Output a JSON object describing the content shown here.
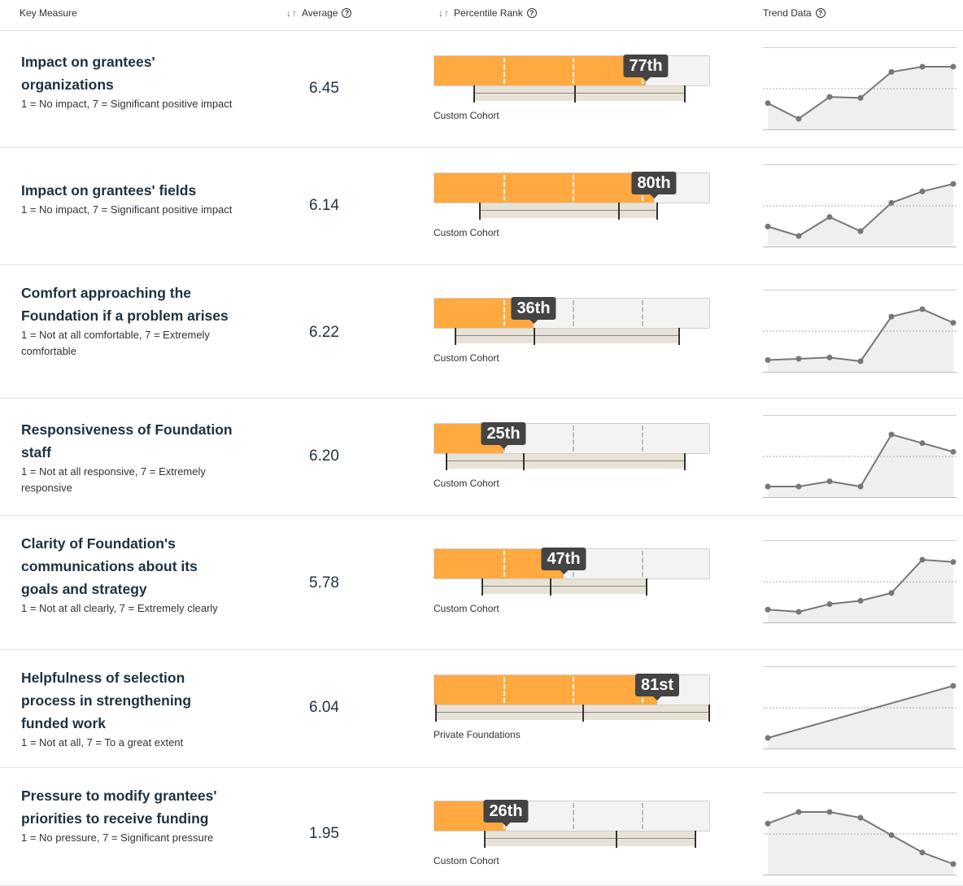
{
  "header": {
    "key_measure": "Key Measure",
    "sort_arrows": "↓↑",
    "average": "Average",
    "percentile_rank": "Percentile Rank",
    "trend_data": "Trend Data",
    "help_icon": "?"
  },
  "colors": {
    "accent": "#ffa940",
    "badge": "#444444",
    "cohort_band": "#e8e2d6",
    "trend_line": "#777777"
  },
  "rows": [
    {
      "title": "Impact on grantees' organizations",
      "subtitle": "1 = No impact, 7 = Significant positive impact",
      "average": "6.45",
      "percentile": 77,
      "rank_label": "77th",
      "cohort_label": "Custom Cohort",
      "cohort_range": [
        0.14,
        0.91
      ],
      "cohort_median": 0.51,
      "trend": [
        6.1,
        5.95,
        6.16,
        6.15,
        6.4,
        6.45,
        6.45
      ]
    },
    {
      "title": "Impact on grantees' fields",
      "subtitle": "1 = No impact, 7 = Significant positive impact",
      "average": "6.14",
      "percentile": 80,
      "rank_label": "80th",
      "cohort_label": "Custom Cohort",
      "cohort_range": [
        0.16,
        0.81
      ],
      "cohort_median": 0.67,
      "trend": [
        5.55,
        5.45,
        5.65,
        5.5,
        5.8,
        5.92,
        6.0
      ]
    },
    {
      "title": "Comfort approaching the Foundation if a problem arises",
      "subtitle": "1 = Not at all comfortable, 7 = Extremely comfortable",
      "average": "6.22",
      "percentile": 36,
      "rank_label": "36th",
      "cohort_label": "Custom Cohort",
      "cohort_range": [
        0.07,
        0.89
      ],
      "cohort_median": 0.36,
      "trend": [
        5.75,
        5.76,
        5.77,
        5.74,
        6.1,
        6.16,
        6.05
      ]
    },
    {
      "title": "Responsiveness of Foundation staff",
      "subtitle": "1 = Not at all responsive, 7 = Extremely responsive",
      "average": "6.20",
      "percentile": 25,
      "rank_label": "25th",
      "cohort_label": "Custom Cohort",
      "cohort_range": [
        0.04,
        0.91
      ],
      "cohort_median": 0.32,
      "trend": [
        5.9,
        5.9,
        5.93,
        5.9,
        6.2,
        6.15,
        6.1
      ]
    },
    {
      "title": "Clarity of Foundation's communications about its goals and strategy",
      "subtitle": "1 = Not at all clearly, 7 = Extremely clearly",
      "average": "5.78",
      "percentile": 47,
      "rank_label": "47th",
      "cohort_label": "Custom Cohort",
      "cohort_range": [
        0.17,
        0.77
      ],
      "cohort_median": 0.42,
      "trend": [
        5.5,
        5.48,
        5.55,
        5.58,
        5.65,
        5.95,
        5.93
      ]
    },
    {
      "title": "Helpfulness of selection process in strengthening funded work",
      "subtitle": "1 = Not at all, 7 = To a great extent",
      "average": "6.04",
      "percentile": 81,
      "rank_label": "81st",
      "cohort_label": "Private Foundations",
      "cohort_range": [
        0.0,
        1.0
      ],
      "cohort_median": 0.54,
      "trend": [
        6.0,
        6.04
      ]
    },
    {
      "title": "Pressure to modify grantees' priorities to receive funding",
      "subtitle": "1 = No pressure, 7 = Significant pressure",
      "average": "1.95",
      "percentile": 26,
      "rank_label": "26th",
      "cohort_label": "Custom Cohort",
      "cohort_range": [
        0.18,
        0.95
      ],
      "cohort_median": 0.66,
      "trend": [
        2.25,
        2.35,
        2.35,
        2.3,
        2.15,
        2.0,
        1.9
      ]
    }
  ]
}
